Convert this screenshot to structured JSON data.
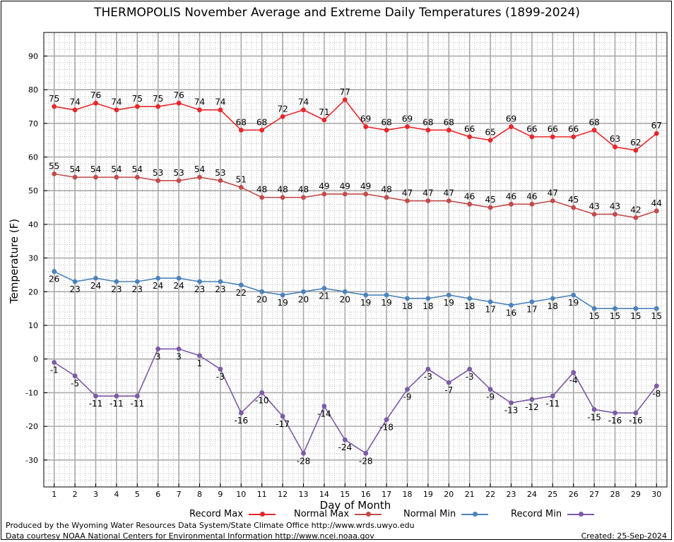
{
  "title": "THERMOPOLIS November Average and Extreme Daily Temperatures (1899-2024)",
  "footer": {
    "produced_by": "Produced by the Wyoming Water Resources Data System/State Climate Office http://www.wrds.uwyo.edu",
    "courtesy": "Data courtesy NOAA National Centers for Environmental Information http://www.ncei.noaa.gov",
    "created": "Created:  25-Sep-2024"
  },
  "chart_data": {
    "type": "line",
    "title": "THERMOPOLIS November Average and Extreme Daily Temperatures (1899-2024)",
    "xlabel": "Day of Month",
    "ylabel": "Temperature (F)",
    "x": [
      1,
      2,
      3,
      4,
      5,
      6,
      7,
      8,
      9,
      10,
      11,
      12,
      13,
      14,
      15,
      16,
      17,
      18,
      19,
      20,
      21,
      22,
      23,
      24,
      25,
      26,
      27,
      28,
      29,
      30
    ],
    "xlim": [
      0.5,
      30.5
    ],
    "ylim": [
      -38,
      97
    ],
    "yticks": [
      -30,
      -20,
      -10,
      0,
      10,
      20,
      30,
      40,
      50,
      60,
      70,
      80,
      90
    ],
    "grid": true,
    "legend_position": "bottom",
    "series": [
      {
        "name": "Record Max",
        "color": "#e8272b",
        "values": [
          75,
          74,
          76,
          74,
          75,
          75,
          76,
          74,
          74,
          68,
          68,
          72,
          74,
          71,
          77,
          69,
          68,
          69,
          68,
          68,
          66,
          65,
          69,
          66,
          66,
          66,
          68,
          63,
          62,
          67
        ],
        "label_position": "above"
      },
      {
        "name": "Normal Max",
        "color": "#c24a4a",
        "values": [
          55,
          54,
          54,
          54,
          54,
          53,
          53,
          54,
          53,
          51,
          48,
          48,
          48,
          49,
          49,
          49,
          48,
          47,
          47,
          47,
          46,
          45,
          46,
          46,
          47,
          45,
          43,
          43,
          42,
          44
        ],
        "label_position": "above"
      },
      {
        "name": "Normal Min",
        "color": "#4a82bb",
        "values": [
          26,
          23,
          24,
          23,
          23,
          24,
          24,
          23,
          23,
          22,
          20,
          19,
          20,
          21,
          20,
          19,
          19,
          18,
          18,
          19,
          18,
          17,
          16,
          17,
          18,
          19,
          15,
          15,
          15,
          15
        ],
        "label_position": "below"
      },
      {
        "name": "Record Min",
        "color": "#7b5aa6",
        "values": [
          -1,
          -5,
          -11,
          -11,
          -11,
          3,
          3,
          1,
          -3,
          -16,
          -10,
          -17,
          -28,
          -14,
          -24,
          -28,
          -18,
          -9,
          -3,
          -7,
          -3,
          -9,
          -13,
          -12,
          -11,
          -4,
          -15,
          -16,
          -16,
          -8
        ],
        "label_position": "below"
      }
    ]
  }
}
